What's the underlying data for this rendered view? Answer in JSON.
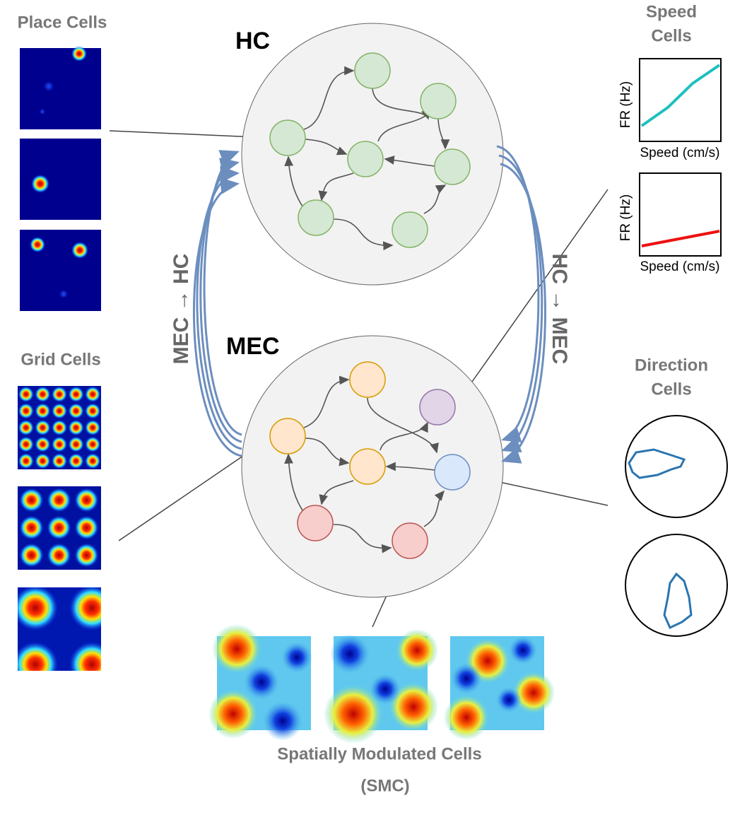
{
  "labels": {
    "place_cells": "Place Cells",
    "grid_cells": "Grid Cells",
    "speed_cells": [
      "Speed",
      "Cells"
    ],
    "direction_cells": [
      "Direction",
      "Cells"
    ],
    "smc_title": "Spatially Modulated Cells",
    "smc_subtitle": "(SMC)"
  },
  "regions": {
    "hc": "HC",
    "mec": "MEC"
  },
  "pathways": {
    "mec_to_hc": "MEC → HC",
    "hc_to_mec": "HC → MEC"
  },
  "speed_plots": [
    {
      "y_label": "FR (Hz)",
      "x_label": "Speed (cm/s)"
    },
    {
      "y_label": "FR (Hz)",
      "x_label": "Speed (cm/s)"
    }
  ]
}
